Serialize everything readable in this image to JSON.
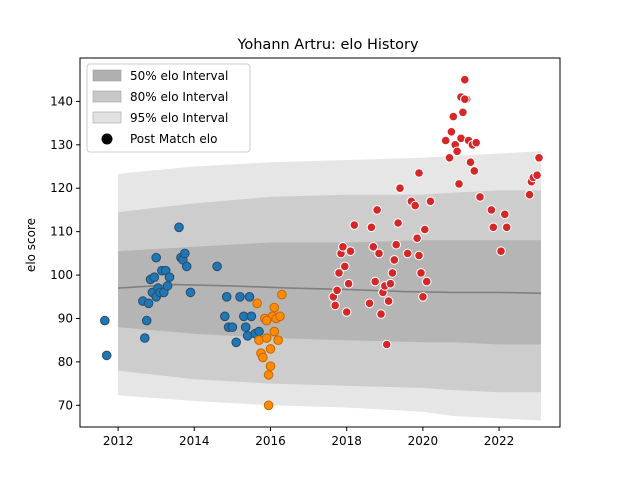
{
  "chart_data": {
    "type": "scatter",
    "title": "Yohann Artru: elo History",
    "xlabel": "",
    "ylabel": "elo score",
    "xlim": [
      2011.0,
      2023.6
    ],
    "ylim": [
      65,
      150
    ],
    "x_ticks": [
      2012,
      2014,
      2016,
      2018,
      2020,
      2022
    ],
    "y_ticks": [
      70,
      80,
      90,
      100,
      110,
      120,
      130,
      140
    ],
    "grid": false,
    "legend": {
      "placement": "top-left",
      "entries": [
        "50% elo Interval",
        "80% elo Interval",
        "95% elo Interval",
        "Post Match elo"
      ]
    },
    "colors": {
      "band50": "#b0b0b0",
      "band80": "#c8c8c8",
      "band95": "#e2e2e2",
      "mean_line": "#808080",
      "point_blue": "#1f77b4",
      "point_orange": "#ff8c00",
      "point_red": "#d62728"
    },
    "bands": [
      {
        "name": "95% elo Interval",
        "x": [
          2012.0,
          2014.0,
          2016.0,
          2018.0,
          2020.0,
          2020.8,
          2020.85,
          2022.0,
          2023.1
        ],
        "upper": [
          123.3,
          125.0,
          126.0,
          126.5,
          127.0,
          127.5,
          127.5,
          128.0,
          128.5
        ],
        "lower": [
          72.3,
          71.0,
          70.0,
          69.5,
          68.5,
          67.5,
          67.5,
          67.0,
          66.5
        ]
      },
      {
        "name": "80% elo Interval",
        "x": [
          2012.0,
          2014.0,
          2016.0,
          2018.0,
          2020.0,
          2020.8,
          2020.85,
          2022.0,
          2023.1
        ],
        "upper": [
          114.5,
          116.5,
          118.0,
          118.5,
          118.5,
          119.0,
          119.0,
          119.5,
          119.5
        ],
        "lower": [
          78.0,
          76.0,
          75.0,
          74.5,
          74.0,
          73.5,
          73.5,
          73.0,
          73.0
        ]
      },
      {
        "name": "50% elo Interval",
        "x": [
          2012.0,
          2014.0,
          2016.0,
          2018.0,
          2020.0,
          2020.8,
          2020.85,
          2022.0,
          2023.1
        ],
        "upper": [
          105.5,
          106.5,
          107.5,
          107.5,
          108.0,
          108.0,
          108.0,
          108.0,
          108.0
        ],
        "lower": [
          88.0,
          86.5,
          85.5,
          85.0,
          84.5,
          84.5,
          84.5,
          84.0,
          84.0
        ]
      }
    ],
    "mean_line": {
      "x": [
        2012.0,
        2013.5,
        2015.0,
        2016.5,
        2018.0,
        2019.5,
        2020.8,
        2022.0,
        2023.1
      ],
      "y": [
        97.0,
        97.8,
        97.5,
        97.0,
        96.7,
        96.2,
        96.0,
        96.0,
        95.8
      ]
    },
    "series": [
      {
        "color": "blue",
        "x": [
          2011.65,
          2011.7,
          2012.65,
          2012.7,
          2012.75,
          2012.8,
          2012.85,
          2012.9,
          2012.95,
          2013.0,
          2013.0,
          2013.05,
          2013.1,
          2013.15,
          2013.2,
          2013.25,
          2013.3,
          2013.35,
          2013.6,
          2013.65,
          2013.7,
          2013.75,
          2013.8,
          2013.9,
          2014.6,
          2014.8,
          2014.85,
          2014.9,
          2015.0,
          2015.1,
          2015.2,
          2015.3,
          2015.35,
          2015.4,
          2015.45,
          2015.5,
          2015.6,
          2015.7
        ],
        "y": [
          89.5,
          81.5,
          94.0,
          85.5,
          89.5,
          93.5,
          99.0,
          96.0,
          99.5,
          104.0,
          95.0,
          97.0,
          96.0,
          101.0,
          96.0,
          101.0,
          97.5,
          99.5,
          111.0,
          104.0,
          103.5,
          105.0,
          102.0,
          96.0,
          102.0,
          90.5,
          95.0,
          88.0,
          88.0,
          84.5,
          95.0,
          90.5,
          88.0,
          86.0,
          95.0,
          90.5,
          86.5,
          87.0
        ]
      },
      {
        "color": "orange",
        "x": [
          2015.65,
          2015.7,
          2015.75,
          2015.8,
          2015.85,
          2015.9,
          2015.95,
          2016.0,
          2016.05,
          2016.1,
          2016.15,
          2016.2,
          2016.25,
          2016.3,
          2015.95,
          2016.0,
          2015.9,
          2016.1
        ],
        "y": [
          93.5,
          85.0,
          82.0,
          81.0,
          90.0,
          85.5,
          77.0,
          79.0,
          90.5,
          87.0,
          90.0,
          85.0,
          90.5,
          95.5,
          70.0,
          83.0,
          89.5,
          92.5
        ]
      },
      {
        "color": "red",
        "x": [
          2017.65,
          2017.7,
          2017.75,
          2017.8,
          2017.85,
          2017.9,
          2017.95,
          2018.0,
          2018.05,
          2018.1,
          2018.2,
          2018.6,
          2018.65,
          2018.7,
          2018.75,
          2018.8,
          2018.85,
          2018.9,
          2018.95,
          2019.0,
          2019.05,
          2019.1,
          2019.15,
          2019.2,
          2019.25,
          2019.3,
          2019.35,
          2019.4,
          2019.6,
          2019.7,
          2019.8,
          2019.85,
          2019.9,
          2019.95,
          2020.0,
          2020.05,
          2020.1,
          2020.2,
          2020.6,
          2020.7,
          2020.75,
          2020.8,
          2020.85,
          2020.9,
          2020.95,
          2021.0,
          2021.05,
          2021.1,
          2021.15,
          2021.2,
          2021.25,
          2021.3,
          2021.35,
          2021.4,
          2021.5,
          2021.8,
          2021.85,
          2022.05,
          2022.15,
          2022.2,
          2022.8,
          2022.85,
          2022.9,
          2023.0,
          2023.05,
          2021.0,
          2021.1,
          2019.9
        ],
        "y": [
          95.0,
          93.0,
          96.5,
          100.5,
          105.0,
          106.5,
          102.0,
          91.5,
          98.0,
          105.5,
          111.5,
          93.5,
          111.0,
          106.5,
          98.5,
          115.0,
          105.0,
          91.0,
          96.0,
          97.5,
          84.0,
          94.0,
          98.0,
          100.5,
          103.5,
          107.0,
          112.0,
          120.0,
          105.0,
          117.0,
          116.0,
          108.5,
          104.5,
          100.5,
          95.0,
          110.5,
          98.5,
          117.0,
          131.0,
          127.0,
          133.0,
          136.5,
          130.0,
          128.5,
          121.0,
          131.5,
          137.5,
          145.0,
          140.5,
          131.0,
          126.0,
          130.0,
          124.0,
          130.5,
          118.0,
          115.0,
          111.0,
          105.5,
          114.0,
          111.0,
          118.5,
          121.5,
          122.5,
          123.0,
          127.0,
          141.0,
          140.5,
          123.5
        ]
      }
    ]
  }
}
